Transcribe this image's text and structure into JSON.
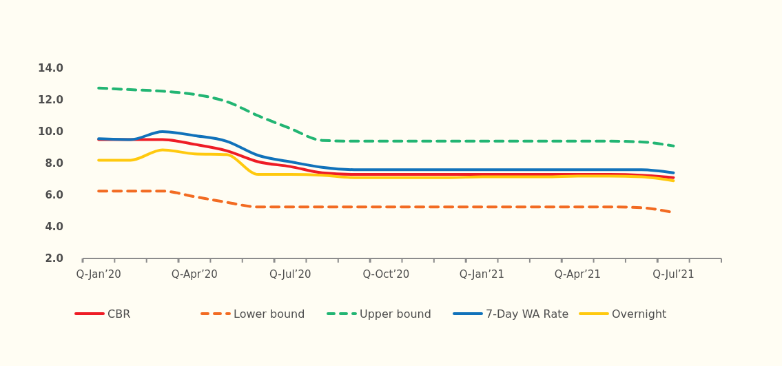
{
  "chart_data": {
    "type": "line",
    "categories": [
      "Q-Jan’20",
      null,
      null,
      "Q-Apr’20",
      null,
      null,
      "Q-Jul’20",
      null,
      null,
      "Q-Oct’20",
      null,
      null,
      "Q-Jan’21",
      null,
      null,
      "Q-Apr’21",
      null,
      null,
      "Q-Jul’21",
      null
    ],
    "ylim": [
      2,
      14
    ],
    "yticks": [
      {
        "value": 2,
        "label": "2.0"
      },
      {
        "value": 4,
        "label": "4.0"
      },
      {
        "value": 6,
        "label": "6.0"
      },
      {
        "value": 8,
        "label": "8.0"
      },
      {
        "value": 10,
        "label": "10.0"
      },
      {
        "value": 12,
        "label": "12.0"
      },
      {
        "value": 14,
        "label": "14.0"
      }
    ],
    "grid": false,
    "legend": "bottom",
    "series": [
      {
        "name": "CBR",
        "color": "#ee1c25",
        "line_style": "solid",
        "values": [
          9.5,
          9.5,
          9.5,
          9.2,
          8.8,
          8.1,
          7.8,
          7.4,
          7.3,
          7.3,
          7.3,
          7.3,
          7.3,
          7.3,
          7.3,
          7.3,
          7.3,
          7.25,
          7.1,
          null
        ]
      },
      {
        "name": "Lower bound",
        "color": "#f26b22",
        "line_style": "dashed",
        "values": [
          6.25,
          6.25,
          6.25,
          5.9,
          5.55,
          5.25,
          5.25,
          5.25,
          5.25,
          5.25,
          5.25,
          5.25,
          5.25,
          5.25,
          5.25,
          5.25,
          5.25,
          5.2,
          4.9,
          null
        ]
      },
      {
        "name": "Upper bound",
        "color": "#22b573",
        "line_style": "dashed",
        "values": [
          12.75,
          12.65,
          12.55,
          12.35,
          11.9,
          11,
          10.2,
          9.45,
          9.4,
          9.4,
          9.4,
          9.4,
          9.4,
          9.4,
          9.4,
          9.4,
          9.4,
          9.35,
          9.1,
          null
        ]
      },
      {
        "name": "7-Day WA Rate",
        "color": "#1172ba",
        "line_style": "solid",
        "values": [
          9.55,
          9.5,
          10,
          9.75,
          9.4,
          8.5,
          8.1,
          7.75,
          7.6,
          7.6,
          7.6,
          7.6,
          7.6,
          7.6,
          7.6,
          7.6,
          7.6,
          7.6,
          7.4,
          null
        ]
      },
      {
        "name": "Overnight",
        "color": "#ffc90e",
        "line_style": "solid",
        "values": [
          8.2,
          8.2,
          8.85,
          8.6,
          8.55,
          7.3,
          7.3,
          7.25,
          7.1,
          7.1,
          7.1,
          7.1,
          7.15,
          7.15,
          7.15,
          7.2,
          7.2,
          7.15,
          6.9,
          null
        ]
      }
    ]
  }
}
